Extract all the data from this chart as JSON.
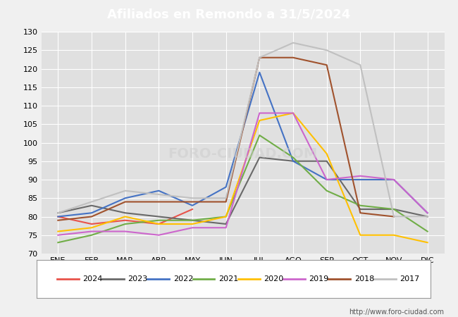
{
  "title": "Afiliados en Remondo a 31/5/2024",
  "title_color": "white",
  "title_bg": "#4472c4",
  "ylim": [
    70,
    130
  ],
  "yticks": [
    70,
    75,
    80,
    85,
    90,
    95,
    100,
    105,
    110,
    115,
    120,
    125,
    130
  ],
  "months": [
    "ENE",
    "FEB",
    "MAR",
    "ABR",
    "MAY",
    "JUN",
    "JUL",
    "AGO",
    "SEP",
    "OCT",
    "NOV",
    "DIC"
  ],
  "series": {
    "2024": {
      "color": "#e8534a",
      "data": [
        80,
        78,
        79,
        78,
        82,
        null,
        null,
        null,
        null,
        null,
        null,
        null
      ]
    },
    "2023": {
      "color": "#696969",
      "data": [
        81,
        83,
        81,
        80,
        79,
        78,
        96,
        95,
        95,
        82,
        82,
        80
      ]
    },
    "2022": {
      "color": "#4472c4",
      "data": [
        80,
        81,
        85,
        87,
        83,
        88,
        119,
        95,
        90,
        90,
        90,
        81
      ]
    },
    "2021": {
      "color": "#70ad47",
      "data": [
        73,
        75,
        78,
        79,
        79,
        80,
        102,
        96,
        87,
        83,
        82,
        76
      ]
    },
    "2020": {
      "color": "#ffc000",
      "data": [
        76,
        77,
        80,
        78,
        78,
        80,
        106,
        108,
        97,
        75,
        75,
        73
      ]
    },
    "2019": {
      "color": "#cc66cc",
      "data": [
        75,
        76,
        76,
        75,
        77,
        77,
        108,
        108,
        90,
        91,
        90,
        81
      ]
    },
    "2018": {
      "color": "#a0522d",
      "data": [
        79,
        80,
        84,
        84,
        84,
        84,
        123,
        123,
        121,
        81,
        80,
        null
      ]
    },
    "2017": {
      "color": "#c0c0c0",
      "data": [
        81,
        84,
        87,
        86,
        85,
        85,
        123,
        127,
        125,
        121,
        80,
        80
      ]
    }
  },
  "legend_order": [
    "2024",
    "2023",
    "2022",
    "2021",
    "2020",
    "2019",
    "2018",
    "2017"
  ],
  "bg_color": "#f0f0f0",
  "plot_bg": "#e0e0e0",
  "grid_color": "white",
  "footer_url": "http://www.foro-ciudad.com"
}
